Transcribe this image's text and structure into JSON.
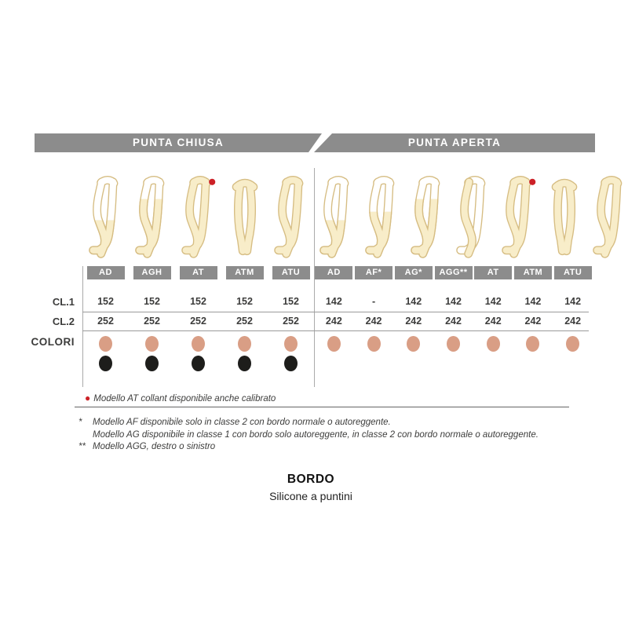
{
  "header": {
    "left_label": "PUNTA CHIUSA",
    "right_label": "PUNTA APERTA",
    "bar_color": "#8c8c8c"
  },
  "table": {
    "row_labels": {
      "cl1": "CL.1",
      "cl2": "CL.2",
      "colors": "COLORI"
    },
    "closed_toe": {
      "models": [
        {
          "label": "AD",
          "variant": "knee",
          "red_dot": false,
          "cl1": "152",
          "cl2": "252",
          "colors": [
            "skin",
            "black"
          ]
        },
        {
          "label": "AGH",
          "variant": "thigh",
          "red_dot": false,
          "cl1": "152",
          "cl2": "252",
          "colors": [
            "skin",
            "black"
          ]
        },
        {
          "label": "AT",
          "variant": "tights",
          "red_dot": true,
          "cl1": "152",
          "cl2": "252",
          "colors": [
            "skin",
            "black"
          ]
        },
        {
          "label": "ATM",
          "variant": "front",
          "red_dot": false,
          "cl1": "152",
          "cl2": "252",
          "colors": [
            "skin",
            "black"
          ]
        },
        {
          "label": "ATU",
          "variant": "tights",
          "red_dot": false,
          "cl1": "152",
          "cl2": "252",
          "colors": [
            "skin",
            "black"
          ]
        }
      ]
    },
    "open_toe": {
      "models": [
        {
          "label": "AD",
          "variant": "knee",
          "red_dot": false,
          "cl1": "142",
          "cl2": "242",
          "colors": [
            "skin"
          ]
        },
        {
          "label": "AF*",
          "variant": "knee_high",
          "red_dot": false,
          "cl1": "-",
          "cl2": "242",
          "colors": [
            "skin"
          ]
        },
        {
          "label": "AG*",
          "variant": "thigh",
          "red_dot": false,
          "cl1": "142",
          "cl2": "242",
          "colors": [
            "skin"
          ]
        },
        {
          "label": "AGG**",
          "variant": "oneleg",
          "red_dot": false,
          "cl1": "142",
          "cl2": "242",
          "colors": [
            "skin"
          ]
        },
        {
          "label": "AT",
          "variant": "tights",
          "red_dot": true,
          "cl1": "142",
          "cl2": "242",
          "colors": [
            "skin"
          ]
        },
        {
          "label": "ATM",
          "variant": "front",
          "red_dot": false,
          "cl1": "142",
          "cl2": "242",
          "colors": [
            "skin"
          ]
        },
        {
          "label": "ATU",
          "variant": "tights",
          "red_dot": false,
          "cl1": "142",
          "cl2": "242",
          "colors": [
            "skin"
          ]
        }
      ]
    }
  },
  "swatch_colors": {
    "skin": "#d99e85",
    "black": "#1d1d1b"
  },
  "notes": {
    "red_note": "Modello AT collant disponibile anche calibrato",
    "red_bullet": "●",
    "footnotes": [
      {
        "marker": "*",
        "text": "Modello AF disponibile solo in classe 2 con bordo normale o autoreggente."
      },
      {
        "marker": "",
        "text": "Modello AG disponibile in classe 1 con bordo solo autoreggente, in classe 2 con bordo normale o autoreggente."
      },
      {
        "marker": "**",
        "text": "Modello AGG, destro o sinistro"
      }
    ]
  },
  "bordo": {
    "title": "BORDO",
    "subtitle": "Silicone a puntini"
  },
  "illustration": {
    "stocking_fill": "#f8edc9",
    "skin_fill": "#ffffff",
    "outline": "#d6bd83",
    "red_dot_color": "#cc2127"
  }
}
